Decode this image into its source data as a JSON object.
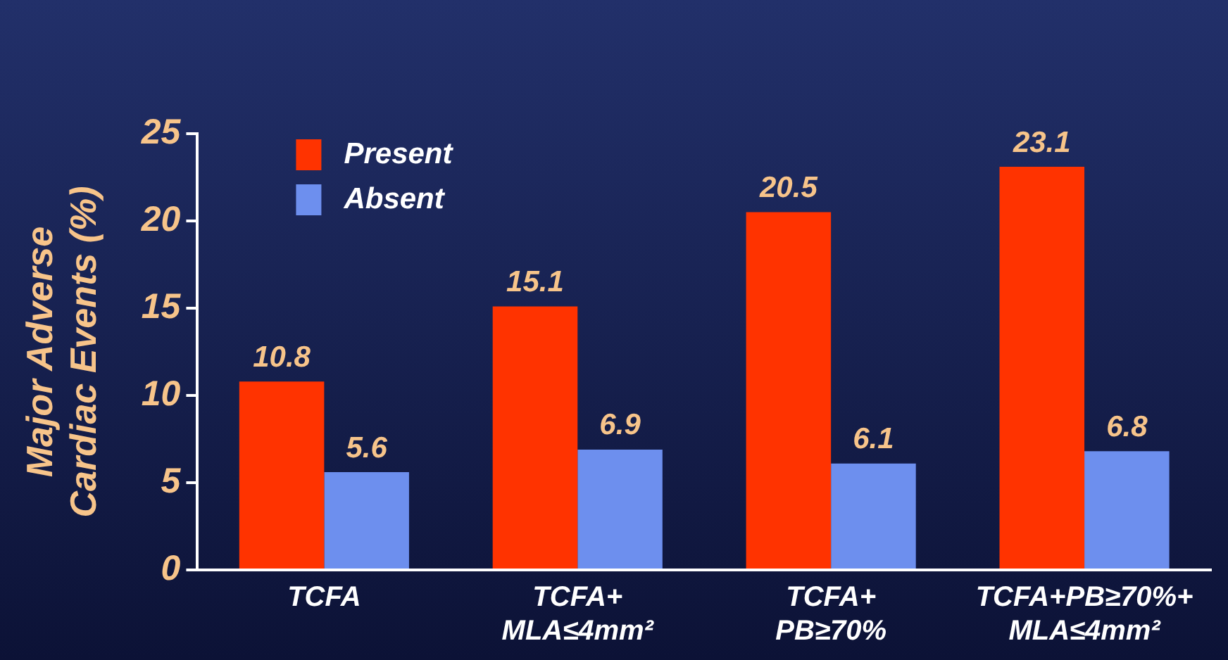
{
  "chart_data": {
    "type": "bar",
    "ylabel": "Major Adverse\nCardiac Events (%)",
    "categories": [
      "TCFA",
      "TCFA+\nMLA≤4mm²",
      "TCFA+\nPB≥70%",
      "TCFA+PB≥70%+\nMLA≤4mm²"
    ],
    "series": [
      {
        "name": "Present",
        "color": "#ff3300",
        "values": [
          10.8,
          15.1,
          20.5,
          23.1
        ]
      },
      {
        "name": "Absent",
        "color": "#6d8fee",
        "values": [
          5.6,
          6.9,
          6.1,
          6.8
        ]
      }
    ],
    "ylim": [
      0,
      25
    ],
    "yticks": [
      0,
      5,
      10,
      15,
      20,
      25
    ],
    "grid": false,
    "legend": "top left",
    "data_labels": true
  }
}
